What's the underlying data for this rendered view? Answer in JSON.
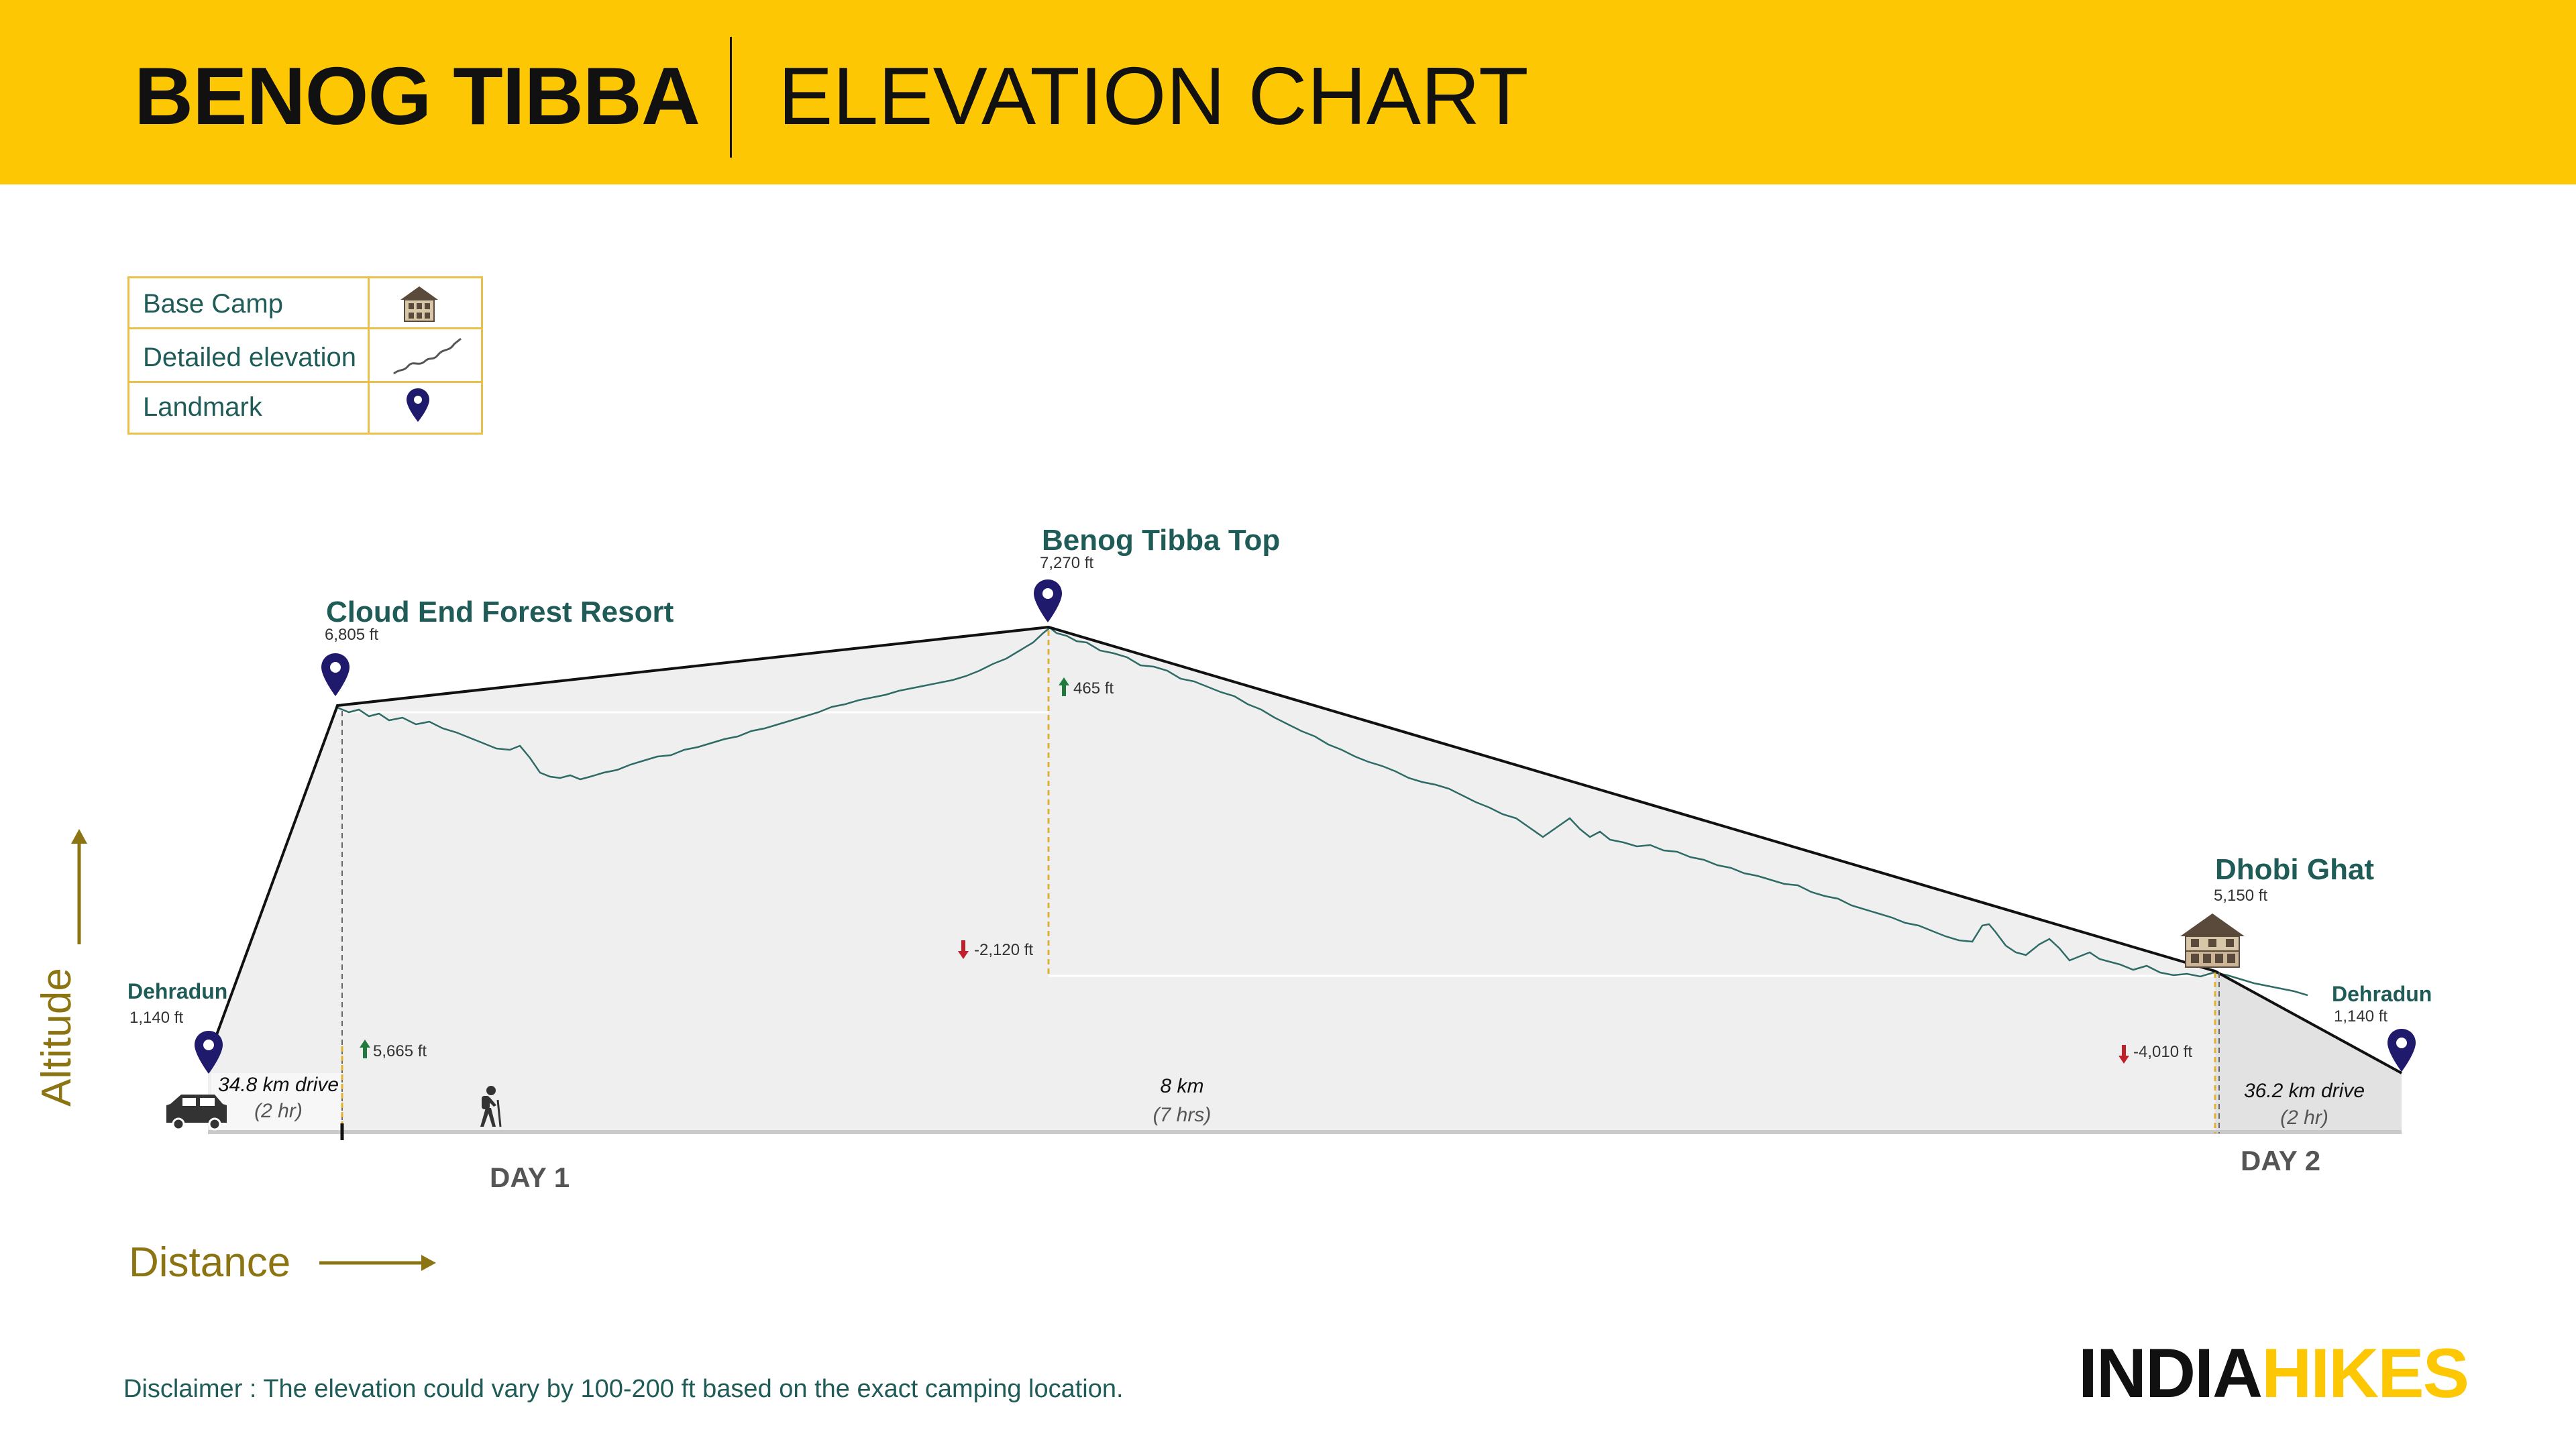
{
  "header": {
    "title": "BENOG TIBBA",
    "subtitle": "ELEVATION CHART"
  },
  "legend": {
    "items": [
      {
        "label": "Base Camp",
        "icon": "base-camp-icon"
      },
      {
        "label": "Detailed elevation",
        "icon": "detailed-elevation-icon"
      },
      {
        "label": "Landmark",
        "icon": "landmark-pin-icon"
      }
    ]
  },
  "chart_data": {
    "type": "elevation-profile",
    "unit": "ft",
    "points": [
      {
        "name": "Dehradun",
        "elevation": 1140,
        "elevation_label": "1,140 ft",
        "marker": "landmark"
      },
      {
        "name": "Cloud End Forest Resort",
        "elevation": 6805,
        "elevation_label": "6,805 ft",
        "marker": "landmark"
      },
      {
        "name": "Benog Tibba Top",
        "elevation": 7270,
        "elevation_label": "7,270 ft",
        "marker": "landmark"
      },
      {
        "name": "Dhobi Ghat",
        "elevation": 5150,
        "elevation_label": "5,150 ft",
        "marker": "base-camp"
      },
      {
        "name": "Dehradun",
        "elevation": 1140,
        "elevation_label": "1,140 ft",
        "marker": "landmark"
      }
    ],
    "changes": [
      {
        "direction": "up",
        "value": 5665,
        "label": "5,665 ft"
      },
      {
        "direction": "up",
        "value": 465,
        "label": "465 ft"
      },
      {
        "direction": "down",
        "value": -2120,
        "label": "-2,120 ft"
      },
      {
        "direction": "down",
        "value": -4010,
        "label": "-4,010 ft"
      }
    ],
    "segments": [
      {
        "distance": "34.8 km drive",
        "duration": "(2 hr)",
        "mode": "car"
      },
      {
        "distance": "8 km",
        "duration": "(7 hrs)",
        "mode": "trek"
      },
      {
        "distance": "36.2 km drive",
        "duration": "(2 hr)",
        "mode": "car"
      }
    ],
    "days": [
      "DAY 1",
      "DAY 2"
    ],
    "ylabel": "Altitude",
    "xlabel": "Distance"
  },
  "colors": {
    "header_bg": "#FDC803",
    "teal_text": "#1F5C57",
    "pin": "#1F1A6B",
    "up_arrow": "#1E7B3B",
    "down_arrow": "#C0202A",
    "axis_gold": "#8C7412",
    "profile_line": "#2E6B66",
    "area_fill": "#EFEFEF"
  },
  "footer": {
    "disclaimer": "Disclaimer : The elevation could vary by 100-200 ft based on the exact camping location.",
    "brand_part1": "INDIA",
    "brand_part2": "HIKES"
  }
}
